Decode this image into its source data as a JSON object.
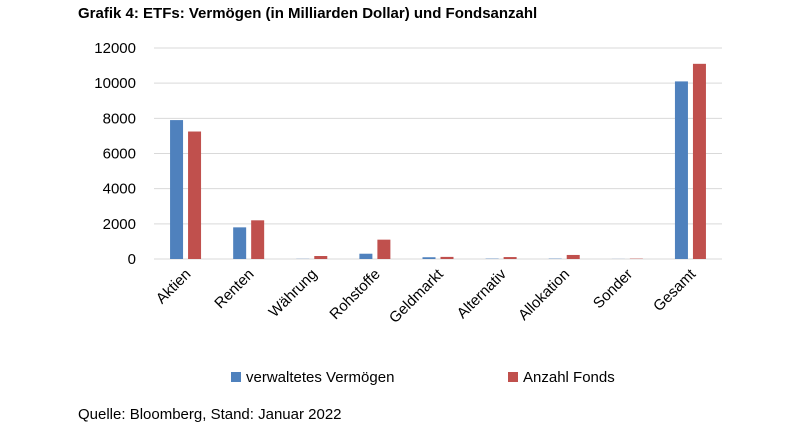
{
  "title": "Grafik 4: ETFs: Vermögen (in Milliarden Dollar) und Fondsanzahl",
  "source": "Quelle: Bloomberg, Stand: Januar 2022",
  "chart_data": {
    "type": "bar",
    "categories": [
      "Aktien",
      "Renten",
      "Währung",
      "Rohstoffe",
      "Geldmarkt",
      "Alternativ",
      "Allokation",
      "Sonder",
      "Gesamt"
    ],
    "series": [
      {
        "name": "verwaltetes Vermögen",
        "color": "#4f81bd",
        "values": [
          7900,
          1800,
          10,
          300,
          100,
          20,
          20,
          5,
          10100
        ]
      },
      {
        "name": "Anzahl Fonds",
        "color": "#c0504d",
        "values": [
          7250,
          2200,
          170,
          1100,
          120,
          110,
          230,
          20,
          11100
        ]
      }
    ],
    "yticks": [
      0,
      2000,
      4000,
      6000,
      8000,
      10000,
      12000
    ],
    "ylim": [
      0,
      12000
    ],
    "grid": true,
    "legend_position": "bottom"
  }
}
